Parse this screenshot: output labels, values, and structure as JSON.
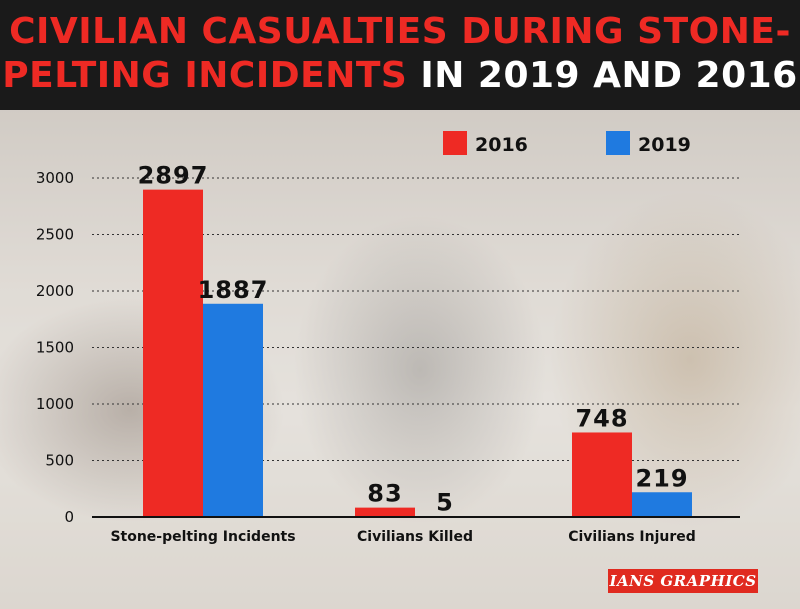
{
  "header": {
    "title_line1": "CIVILIAN CASUALTIES DURING STONE-",
    "title_line2_red": "PELTING INCIDENTS",
    "title_line2_white": " IN 2019 AND 2016"
  },
  "credit": "IANS GRAPHICS",
  "colors": {
    "series_2016": "#ee2a24",
    "series_2019": "#1f7ae0",
    "title_red": "#ee2a24",
    "header_bg": "#1a1a1a"
  },
  "chart_data": {
    "type": "bar",
    "title": "CIVILIAN CASUALTIES DURING STONE-PELTING INCIDENTS IN 2019 AND 2016",
    "xlabel": "",
    "ylabel": "",
    "categories": [
      "Stone-pelting Incidents",
      "Civilians Killed",
      "Civilians Injured"
    ],
    "series": [
      {
        "name": "2016",
        "values": [
          2897,
          83,
          748
        ]
      },
      {
        "name": "2019",
        "values": [
          1887,
          5,
          219
        ]
      }
    ],
    "ylim": [
      0,
      3000
    ],
    "yticks": [
      0,
      500,
      1000,
      1500,
      2000,
      2500,
      3000
    ],
    "grid": true,
    "legend_position": "top-right"
  }
}
